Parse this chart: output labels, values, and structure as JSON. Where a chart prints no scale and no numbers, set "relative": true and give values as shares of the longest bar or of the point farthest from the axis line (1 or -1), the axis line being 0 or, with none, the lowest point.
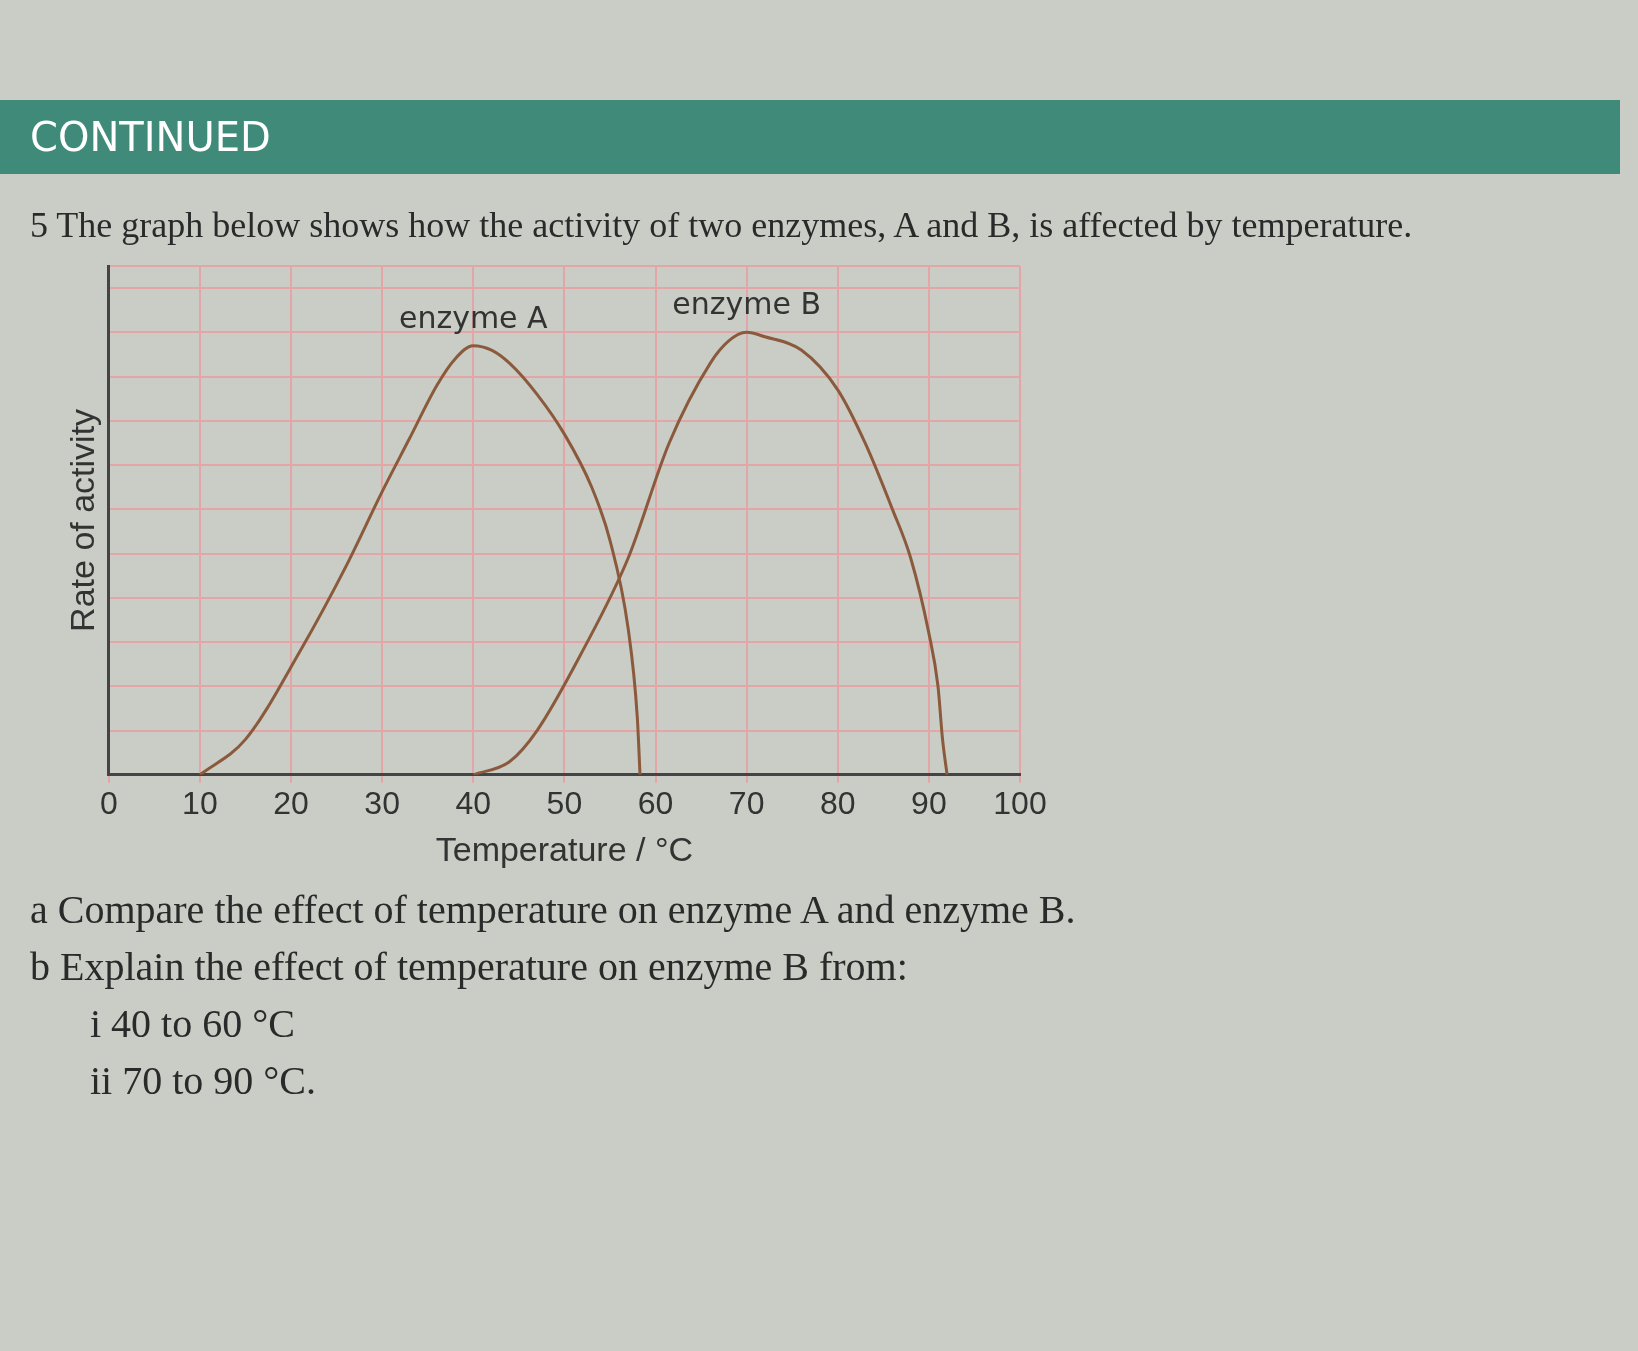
{
  "chart_data": {
    "type": "line",
    "title": "5 The graph below shows how the activity of two enzymes, A and B, is affected by temperature.",
    "xlabel": "Temperature / °C",
    "ylabel": "Rate of activity",
    "annotations": [
      "CONTINUED",
      "a Compare the effect of temperature on enzyme A and enzyme B.",
      "b Explain the effect of temperature on enzyme B from:",
      "i 40 to 60 °C",
      "ii 70 to 90 °C."
    ],
    "relative": true,
    "xlim": [
      0,
      100
    ],
    "xticks": [
      0,
      10,
      20,
      30,
      40,
      50,
      60,
      70,
      80,
      90,
      100
    ],
    "grid": true,
    "legend": false,
    "marker": "none",
    "line_style": "solid",
    "series": [
      {
        "name": "enzyme A",
        "color": "#8b5a3c",
        "x": [
          10,
          15,
          21,
          26,
          30,
          33,
          36,
          38,
          40,
          42,
          44,
          47,
          50,
          53,
          55,
          57,
          58,
          58.3
        ],
        "values": [
          0,
          0.08,
          0.28,
          0.47,
          0.64,
          0.76,
          0.88,
          0.94,
          0.97,
          0.96,
          0.93,
          0.86,
          0.77,
          0.65,
          0.53,
          0.33,
          0.13,
          0
        ]
      },
      {
        "name": "enzyme B",
        "color": "#8b5a3c",
        "x": [
          40,
          44,
          47,
          52,
          57,
          61.5,
          66,
          68,
          70,
          72,
          76,
          80,
          83,
          86,
          88,
          90,
          91,
          91.5,
          92
        ],
        "values": [
          0,
          0.03,
          0.1,
          0.28,
          0.49,
          0.75,
          0.93,
          0.98,
          1,
          0.99,
          0.96,
          0.87,
          0.75,
          0.6,
          0.49,
          0.32,
          0.2,
          0.08,
          0
        ]
      }
    ]
  }
}
